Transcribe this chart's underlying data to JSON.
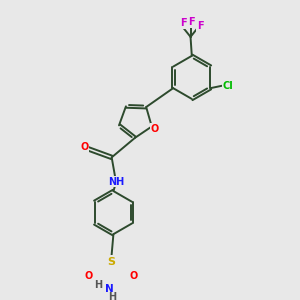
{
  "bg_color": "#e8e8e8",
  "bond_color": "#2d4a2d",
  "atom_colors": {
    "O": "#ff0000",
    "N": "#1a1aff",
    "F": "#cc00cc",
    "Cl": "#00bb00",
    "S": "#ccaa00",
    "H": "#555555"
  },
  "font_size": 7.0,
  "lw": 1.4
}
